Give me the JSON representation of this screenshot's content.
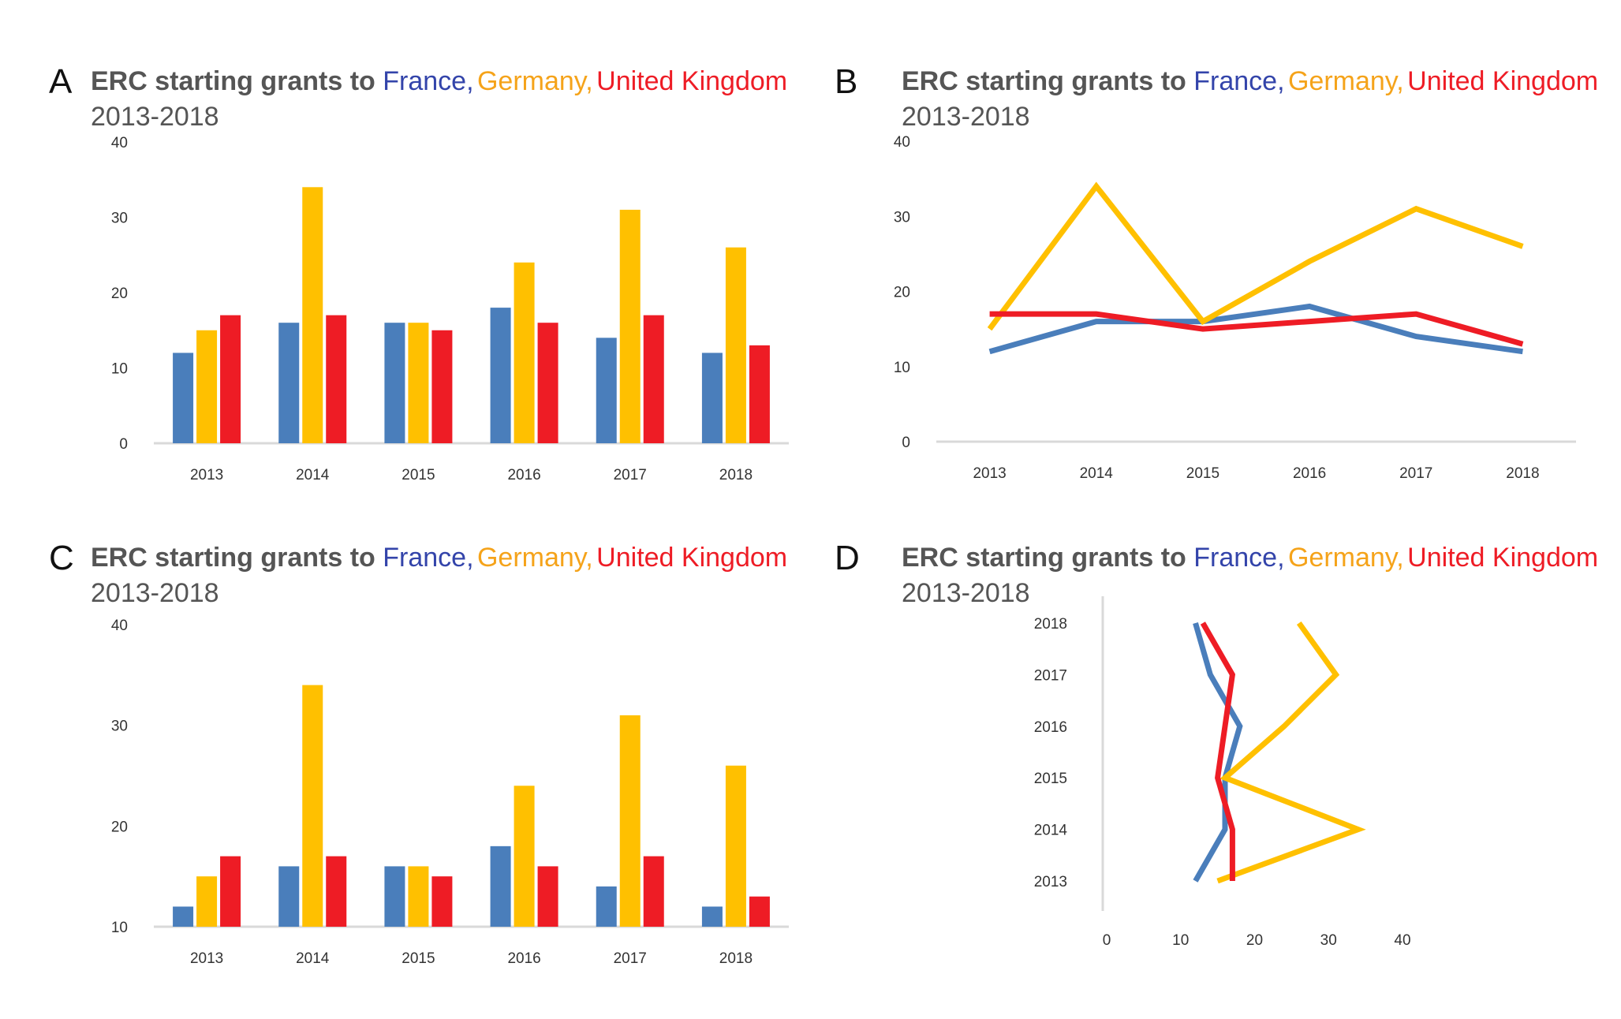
{
  "colors": {
    "title": "#555555",
    "france": "#4a7ebb",
    "germany": "#ffc000",
    "uk": "#ee1c25",
    "axis": "#d9d9d9",
    "france_label": "#3344aa",
    "germany_label": "#f5a31a",
    "uk_label": "#ee1c25"
  },
  "chart_data": [
    {
      "panel": "A",
      "type": "bar",
      "title": {
        "prefix": "ERC starting grants to ",
        "france": "France,",
        "germany": "Germany,",
        "uk": "United Kingdom"
      },
      "subtitle": "2013-2018",
      "categories": [
        "2013",
        "2014",
        "2015",
        "2016",
        "2017",
        "2018"
      ],
      "series": [
        {
          "key": "france",
          "values": [
            12,
            16,
            16,
            18,
            14,
            12
          ]
        },
        {
          "key": "germany",
          "values": [
            15,
            34,
            16,
            24,
            31,
            26
          ]
        },
        {
          "key": "uk",
          "values": [
            17,
            17,
            15,
            16,
            17,
            13
          ]
        }
      ],
      "ylim": [
        0,
        40
      ],
      "yticks": [
        "0",
        "10",
        "20",
        "30",
        "40"
      ],
      "grid": false
    },
    {
      "panel": "B",
      "type": "line",
      "title": {
        "prefix": "ERC starting grants to ",
        "france": "France,",
        "germany": "Germany,",
        "uk": "United Kingdom"
      },
      "subtitle": "2013-2018",
      "categories": [
        "2013",
        "2014",
        "2015",
        "2016",
        "2017",
        "2018"
      ],
      "series": [
        {
          "key": "france",
          "values": [
            12,
            16,
            16,
            18,
            14,
            12
          ]
        },
        {
          "key": "germany",
          "values": [
            15,
            34,
            16,
            24,
            31,
            26
          ]
        },
        {
          "key": "uk",
          "values": [
            17,
            17,
            15,
            16,
            17,
            13
          ]
        }
      ],
      "ylim": [
        0,
        40
      ],
      "yticks": [
        "0",
        "10",
        "20",
        "30",
        "40"
      ],
      "grid": false
    },
    {
      "panel": "C",
      "type": "bar",
      "title": {
        "prefix": "ERC starting grants to ",
        "france": "France,",
        "germany": "Germany,",
        "uk": "United Kingdom"
      },
      "subtitle": "2013-2018",
      "categories": [
        "2013",
        "2014",
        "2015",
        "2016",
        "2017",
        "2018"
      ],
      "series": [
        {
          "key": "france",
          "values": [
            12,
            16,
            16,
            18,
            14,
            12
          ]
        },
        {
          "key": "germany",
          "values": [
            15,
            34,
            16,
            24,
            31,
            26
          ]
        },
        {
          "key": "uk",
          "values": [
            17,
            17,
            15,
            16,
            17,
            13
          ]
        }
      ],
      "ylim": [
        10,
        40
      ],
      "yticks": [
        "10",
        "20",
        "30",
        "40"
      ],
      "grid": false
    },
    {
      "panel": "D",
      "type": "line",
      "orientation": "vertical",
      "title": {
        "prefix": "ERC starting grants to ",
        "france": "France,",
        "germany": "Germany,",
        "uk": "United Kingdom"
      },
      "subtitle": "2013-2018",
      "categories": [
        "2013",
        "2014",
        "2015",
        "2016",
        "2017",
        "2018"
      ],
      "series": [
        {
          "key": "france",
          "values": [
            12,
            16,
            16,
            18,
            14,
            12
          ]
        },
        {
          "key": "germany",
          "values": [
            15,
            34,
            16,
            24,
            31,
            26
          ]
        },
        {
          "key": "uk",
          "values": [
            17,
            17,
            15,
            16,
            17,
            13
          ]
        }
      ],
      "xlim": [
        0,
        40
      ],
      "xticks": [
        "0",
        "10",
        "20",
        "30",
        "40"
      ],
      "grid": false
    }
  ]
}
